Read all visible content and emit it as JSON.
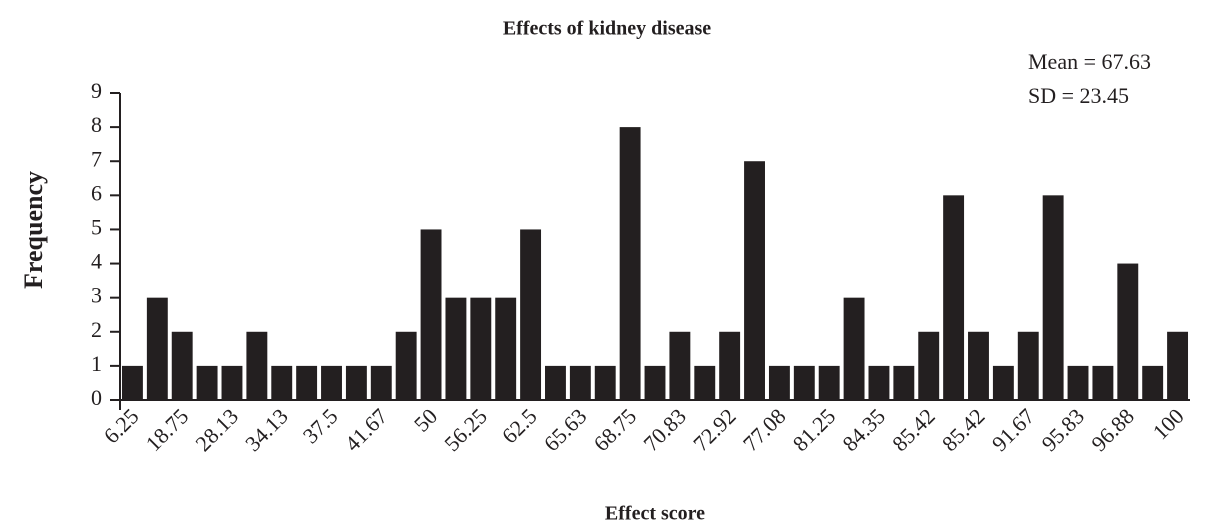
{
  "chart_data": {
    "type": "bar",
    "title": "Effects of kidney disease",
    "x_label": "Effect score",
    "y_label": "Frequency",
    "annotations": [
      "Mean = 67.63",
      "SD = 23.45"
    ],
    "categories": [
      "6.25",
      null,
      "18.75",
      null,
      "28.13",
      null,
      "34.13",
      null,
      "37.5",
      null,
      "41.67",
      null,
      "50",
      null,
      "56.25",
      null,
      "62.5",
      null,
      "65.63",
      null,
      "68.75",
      null,
      "70.83",
      null,
      "72.92",
      null,
      "77.08",
      null,
      "81.25",
      null,
      "84.35",
      null,
      "85.42",
      null,
      "85.42",
      null,
      "91.67",
      null,
      "95.83",
      null,
      "96.88",
      null,
      "100"
    ],
    "values": [
      1,
      3,
      2,
      1,
      1,
      2,
      1,
      1,
      1,
      1,
      1,
      2,
      5,
      3,
      3,
      3,
      5,
      1,
      1,
      1,
      8,
      1,
      2,
      1,
      2,
      7,
      1,
      1,
      1,
      3,
      1,
      1,
      2,
      6,
      2,
      1,
      2,
      6,
      1,
      1,
      4,
      1,
      2
    ],
    "color": "#231f20",
    "ylim": [
      0,
      9
    ],
    "yticks": [
      0,
      1,
      2,
      3,
      4,
      5,
      6,
      7,
      8,
      9
    ],
    "grid": false
  }
}
